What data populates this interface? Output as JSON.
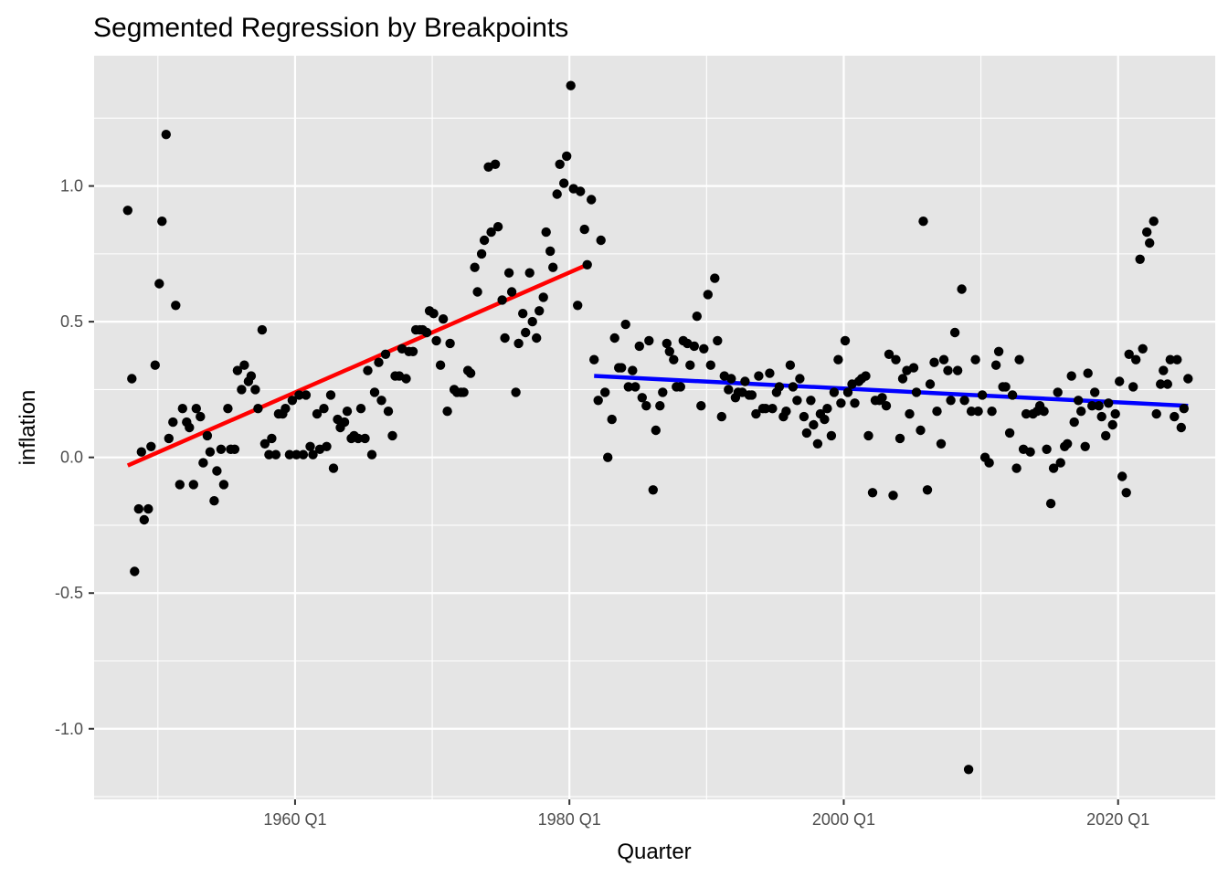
{
  "chart_data": {
    "type": "scatter",
    "title": "Segmented Regression by Breakpoints",
    "xlabel": "Quarter",
    "ylabel": "inflation",
    "xlim": [
      1945.35,
      2027.08
    ],
    "ylim": [
      -1.26,
      1.48
    ],
    "x_ticks": [
      {
        "value": 1960,
        "label": "1960 Q1"
      },
      {
        "value": 1980,
        "label": "1980 Q1"
      },
      {
        "value": 2000,
        "label": "2000 Q1"
      },
      {
        "value": 2020,
        "label": "2020 Q1"
      }
    ],
    "y_ticks": [
      {
        "value": -1.0,
        "label": "-1.0"
      },
      {
        "value": -0.5,
        "label": "-0.5"
      },
      {
        "value": 0.0,
        "label": "0.0"
      },
      {
        "value": 0.5,
        "label": "0.5"
      },
      {
        "value": 1.0,
        "label": "1.0"
      }
    ],
    "grid": true,
    "background": "#e5e5e5",
    "points": [
      [
        1947.8,
        0.91
      ],
      [
        1948.1,
        0.29
      ],
      [
        1948.3,
        -0.42
      ],
      [
        1948.6,
        -0.19
      ],
      [
        1948.8,
        0.02
      ],
      [
        1949.0,
        -0.23
      ],
      [
        1949.3,
        -0.19
      ],
      [
        1949.5,
        0.04
      ],
      [
        1949.8,
        0.34
      ],
      [
        1950.1,
        0.64
      ],
      [
        1950.3,
        0.87
      ],
      [
        1950.6,
        1.19
      ],
      [
        1950.8,
        0.07
      ],
      [
        1951.1,
        0.13
      ],
      [
        1951.3,
        0.56
      ],
      [
        1951.6,
        -0.1
      ],
      [
        1951.8,
        0.18
      ],
      [
        1952.1,
        0.13
      ],
      [
        1952.3,
        0.11
      ],
      [
        1952.6,
        -0.1
      ],
      [
        1952.8,
        0.18
      ],
      [
        1953.1,
        0.15
      ],
      [
        1953.3,
        -0.02
      ],
      [
        1953.6,
        0.08
      ],
      [
        1953.8,
        0.02
      ],
      [
        1954.1,
        -0.16
      ],
      [
        1954.3,
        -0.05
      ],
      [
        1954.6,
        0.03
      ],
      [
        1954.8,
        -0.1
      ],
      [
        1955.1,
        0.18
      ],
      [
        1955.3,
        0.03
      ],
      [
        1955.6,
        0.03
      ],
      [
        1955.8,
        0.32
      ],
      [
        1956.1,
        0.25
      ],
      [
        1956.3,
        0.34
      ],
      [
        1956.6,
        0.28
      ],
      [
        1956.8,
        0.3
      ],
      [
        1957.1,
        0.25
      ],
      [
        1957.3,
        0.18
      ],
      [
        1957.6,
        0.47
      ],
      [
        1957.8,
        0.05
      ],
      [
        1958.1,
        0.01
      ],
      [
        1958.3,
        0.07
      ],
      [
        1958.6,
        0.01
      ],
      [
        1958.8,
        0.16
      ],
      [
        1959.1,
        0.16
      ],
      [
        1959.3,
        0.18
      ],
      [
        1959.6,
        0.01
      ],
      [
        1959.8,
        0.21
      ],
      [
        1960.1,
        0.01
      ],
      [
        1960.3,
        0.23
      ],
      [
        1960.6,
        0.01
      ],
      [
        1960.8,
        0.23
      ],
      [
        1961.1,
        0.04
      ],
      [
        1961.3,
        0.01
      ],
      [
        1961.6,
        0.16
      ],
      [
        1961.8,
        0.03
      ],
      [
        1962.1,
        0.18
      ],
      [
        1962.3,
        0.04
      ],
      [
        1962.6,
        0.23
      ],
      [
        1962.8,
        -0.04
      ],
      [
        1963.1,
        0.14
      ],
      [
        1963.3,
        0.11
      ],
      [
        1963.6,
        0.13
      ],
      [
        1963.8,
        0.17
      ],
      [
        1964.1,
        0.07
      ],
      [
        1964.3,
        0.08
      ],
      [
        1964.6,
        0.07
      ],
      [
        1964.8,
        0.18
      ],
      [
        1965.1,
        0.07
      ],
      [
        1965.3,
        0.32
      ],
      [
        1965.6,
        0.01
      ],
      [
        1965.8,
        0.24
      ],
      [
        1966.1,
        0.35
      ],
      [
        1966.3,
        0.21
      ],
      [
        1966.6,
        0.38
      ],
      [
        1966.8,
        0.17
      ],
      [
        1967.1,
        0.08
      ],
      [
        1967.3,
        0.3
      ],
      [
        1967.6,
        0.3
      ],
      [
        1967.8,
        0.4
      ],
      [
        1968.1,
        0.29
      ],
      [
        1968.3,
        0.39
      ],
      [
        1968.6,
        0.39
      ],
      [
        1968.8,
        0.47
      ],
      [
        1969.1,
        0.47
      ],
      [
        1969.3,
        0.47
      ],
      [
        1969.6,
        0.46
      ],
      [
        1969.8,
        0.54
      ],
      [
        1970.1,
        0.53
      ],
      [
        1970.3,
        0.43
      ],
      [
        1970.6,
        0.34
      ],
      [
        1970.8,
        0.51
      ],
      [
        1971.1,
        0.17
      ],
      [
        1971.3,
        0.42
      ],
      [
        1971.6,
        0.25
      ],
      [
        1971.8,
        0.24
      ],
      [
        1972.1,
        0.24
      ],
      [
        1972.3,
        0.24
      ],
      [
        1972.6,
        0.32
      ],
      [
        1972.8,
        0.31
      ],
      [
        1973.1,
        0.7
      ],
      [
        1973.3,
        0.61
      ],
      [
        1973.6,
        0.75
      ],
      [
        1973.8,
        0.8
      ],
      [
        1974.1,
        1.07
      ],
      [
        1974.3,
        0.83
      ],
      [
        1974.6,
        1.08
      ],
      [
        1974.8,
        0.85
      ],
      [
        1975.1,
        0.58
      ],
      [
        1975.3,
        0.44
      ],
      [
        1975.6,
        0.68
      ],
      [
        1975.8,
        0.61
      ],
      [
        1976.1,
        0.24
      ],
      [
        1976.3,
        0.42
      ],
      [
        1976.6,
        0.53
      ],
      [
        1976.8,
        0.46
      ],
      [
        1977.1,
        0.68
      ],
      [
        1977.3,
        0.5
      ],
      [
        1977.6,
        0.44
      ],
      [
        1977.8,
        0.54
      ],
      [
        1978.1,
        0.59
      ],
      [
        1978.3,
        0.83
      ],
      [
        1978.6,
        0.76
      ],
      [
        1978.8,
        0.7
      ],
      [
        1979.1,
        0.97
      ],
      [
        1979.3,
        1.08
      ],
      [
        1979.6,
        1.01
      ],
      [
        1979.8,
        1.11
      ],
      [
        1980.1,
        1.37
      ],
      [
        1980.3,
        0.99
      ],
      [
        1980.6,
        0.56
      ],
      [
        1980.8,
        0.98
      ],
      [
        1981.1,
        0.84
      ],
      [
        1981.3,
        0.71
      ],
      [
        1981.6,
        0.95
      ],
      [
        1981.8,
        0.36
      ],
      [
        1982.1,
        0.21
      ],
      [
        1982.3,
        0.8
      ],
      [
        1982.6,
        0.24
      ],
      [
        1982.8,
        0.0
      ],
      [
        1983.1,
        0.14
      ],
      [
        1983.3,
        0.44
      ],
      [
        1983.6,
        0.33
      ],
      [
        1983.8,
        0.33
      ],
      [
        1984.1,
        0.49
      ],
      [
        1984.3,
        0.26
      ],
      [
        1984.6,
        0.32
      ],
      [
        1984.8,
        0.26
      ],
      [
        1985.1,
        0.41
      ],
      [
        1985.3,
        0.22
      ],
      [
        1985.6,
        0.19
      ],
      [
        1985.8,
        0.43
      ],
      [
        1986.1,
        -0.12
      ],
      [
        1986.3,
        0.1
      ],
      [
        1986.6,
        0.19
      ],
      [
        1986.8,
        0.24
      ],
      [
        1987.1,
        0.42
      ],
      [
        1987.3,
        0.39
      ],
      [
        1987.6,
        0.36
      ],
      [
        1987.8,
        0.26
      ],
      [
        1988.1,
        0.26
      ],
      [
        1988.3,
        0.43
      ],
      [
        1988.6,
        0.42
      ],
      [
        1988.8,
        0.34
      ],
      [
        1989.1,
        0.41
      ],
      [
        1989.3,
        0.52
      ],
      [
        1989.6,
        0.19
      ],
      [
        1989.8,
        0.4
      ],
      [
        1990.1,
        0.6
      ],
      [
        1990.3,
        0.34
      ],
      [
        1990.6,
        0.66
      ],
      [
        1990.8,
        0.43
      ],
      [
        1991.1,
        0.15
      ],
      [
        1991.3,
        0.3
      ],
      [
        1991.6,
        0.25
      ],
      [
        1991.8,
        0.29
      ],
      [
        1992.1,
        0.22
      ],
      [
        1992.3,
        0.24
      ],
      [
        1992.6,
        0.24
      ],
      [
        1992.8,
        0.28
      ],
      [
        1993.1,
        0.23
      ],
      [
        1993.3,
        0.23
      ],
      [
        1993.6,
        0.16
      ],
      [
        1993.8,
        0.3
      ],
      [
        1994.1,
        0.18
      ],
      [
        1994.3,
        0.18
      ],
      [
        1994.6,
        0.31
      ],
      [
        1994.8,
        0.18
      ],
      [
        1995.1,
        0.24
      ],
      [
        1995.3,
        0.26
      ],
      [
        1995.6,
        0.15
      ],
      [
        1995.8,
        0.17
      ],
      [
        1996.1,
        0.34
      ],
      [
        1996.3,
        0.26
      ],
      [
        1996.6,
        0.21
      ],
      [
        1996.8,
        0.29
      ],
      [
        1997.1,
        0.15
      ],
      [
        1997.3,
        0.09
      ],
      [
        1997.6,
        0.21
      ],
      [
        1997.8,
        0.12
      ],
      [
        1998.1,
        0.05
      ],
      [
        1998.3,
        0.16
      ],
      [
        1998.6,
        0.14
      ],
      [
        1998.8,
        0.18
      ],
      [
        1999.1,
        0.08
      ],
      [
        1999.3,
        0.24
      ],
      [
        1999.6,
        0.36
      ],
      [
        1999.8,
        0.2
      ],
      [
        2000.1,
        0.43
      ],
      [
        2000.3,
        0.24
      ],
      [
        2000.6,
        0.27
      ],
      [
        2000.8,
        0.2
      ],
      [
        2001.1,
        0.28
      ],
      [
        2001.3,
        0.29
      ],
      [
        2001.6,
        0.3
      ],
      [
        2001.8,
        0.08
      ],
      [
        2002.1,
        -0.13
      ],
      [
        2002.3,
        0.21
      ],
      [
        2002.6,
        0.21
      ],
      [
        2002.8,
        0.22
      ],
      [
        2003.1,
        0.19
      ],
      [
        2003.3,
        0.38
      ],
      [
        2003.6,
        -0.14
      ],
      [
        2003.8,
        0.36
      ],
      [
        2004.1,
        0.07
      ],
      [
        2004.3,
        0.29
      ],
      [
        2004.6,
        0.32
      ],
      [
        2004.8,
        0.16
      ],
      [
        2005.1,
        0.33
      ],
      [
        2005.3,
        0.24
      ],
      [
        2005.6,
        0.1
      ],
      [
        2005.8,
        0.87
      ],
      [
        2006.1,
        -0.12
      ],
      [
        2006.3,
        0.27
      ],
      [
        2006.6,
        0.35
      ],
      [
        2006.8,
        0.17
      ],
      [
        2007.1,
        0.05
      ],
      [
        2007.3,
        0.36
      ],
      [
        2007.6,
        0.32
      ],
      [
        2007.8,
        0.21
      ],
      [
        2008.1,
        0.46
      ],
      [
        2008.3,
        0.32
      ],
      [
        2008.6,
        0.62
      ],
      [
        2008.8,
        0.21
      ],
      [
        2009.1,
        -1.15
      ],
      [
        2009.3,
        0.17
      ],
      [
        2009.6,
        0.36
      ],
      [
        2009.8,
        0.17
      ],
      [
        2010.1,
        0.23
      ],
      [
        2010.3,
        0.0
      ],
      [
        2010.6,
        -0.02
      ],
      [
        2010.8,
        0.17
      ],
      [
        2011.1,
        0.34
      ],
      [
        2011.3,
        0.39
      ],
      [
        2011.6,
        0.26
      ],
      [
        2011.8,
        0.26
      ],
      [
        2012.1,
        0.09
      ],
      [
        2012.3,
        0.23
      ],
      [
        2012.6,
        -0.04
      ],
      [
        2012.8,
        0.36
      ],
      [
        2013.1,
        0.03
      ],
      [
        2013.3,
        0.16
      ],
      [
        2013.6,
        0.02
      ],
      [
        2013.8,
        0.16
      ],
      [
        2014.1,
        0.17
      ],
      [
        2014.3,
        0.19
      ],
      [
        2014.6,
        0.17
      ],
      [
        2014.8,
        0.03
      ],
      [
        2015.1,
        -0.17
      ],
      [
        2015.3,
        -0.04
      ],
      [
        2015.6,
        0.24
      ],
      [
        2015.8,
        -0.02
      ],
      [
        2016.1,
        0.04
      ],
      [
        2016.3,
        0.05
      ],
      [
        2016.6,
        0.3
      ],
      [
        2016.8,
        0.13
      ],
      [
        2017.1,
        0.21
      ],
      [
        2017.3,
        0.17
      ],
      [
        2017.6,
        0.04
      ],
      [
        2017.8,
        0.31
      ],
      [
        2018.1,
        0.19
      ],
      [
        2018.3,
        0.24
      ],
      [
        2018.6,
        0.19
      ],
      [
        2018.8,
        0.15
      ],
      [
        2019.1,
        0.08
      ],
      [
        2019.3,
        0.2
      ],
      [
        2019.6,
        0.12
      ],
      [
        2019.8,
        0.16
      ],
      [
        2020.1,
        0.28
      ],
      [
        2020.3,
        -0.07
      ],
      [
        2020.6,
        -0.13
      ],
      [
        2020.8,
        0.38
      ],
      [
        2021.1,
        0.26
      ],
      [
        2021.3,
        0.36
      ],
      [
        2021.6,
        0.73
      ],
      [
        2021.8,
        0.4
      ],
      [
        2022.1,
        0.83
      ],
      [
        2022.3,
        0.79
      ],
      [
        2022.6,
        0.87
      ],
      [
        2022.8,
        0.16
      ],
      [
        2023.1,
        0.27
      ],
      [
        2023.3,
        0.32
      ],
      [
        2023.6,
        0.27
      ],
      [
        2023.8,
        0.36
      ],
      [
        2024.1,
        0.15
      ],
      [
        2024.3,
        0.36
      ],
      [
        2024.6,
        0.11
      ],
      [
        2024.8,
        0.18
      ],
      [
        2025.1,
        0.29
      ]
    ],
    "fit_lines": [
      {
        "color": "#ff0000",
        "x": [
          1947.8,
          1981.3
        ],
        "y": [
          -0.03,
          0.71
        ]
      },
      {
        "color": "#0000ff",
        "x": [
          1981.8,
          2025.1
        ],
        "y": [
          0.3,
          0.19
        ]
      }
    ]
  }
}
